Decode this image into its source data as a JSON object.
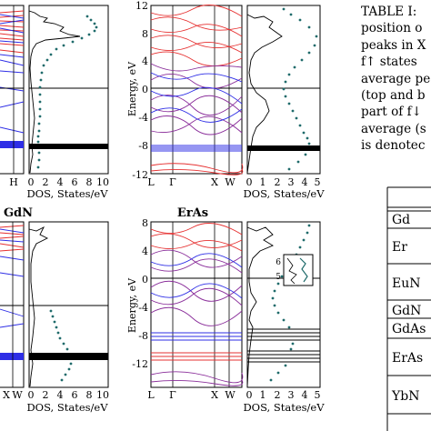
{
  "panels": {
    "left_top": {
      "x_ticks": [
        "H"
      ],
      "dos_ticks": [
        "0",
        "2",
        "4",
        "6",
        "8",
        "10"
      ],
      "dos_xlabel": "DOS, States/eV"
    },
    "mid_top": {
      "ylabel": "Energy, eV",
      "y_ticks": [
        "12",
        "8",
        "4",
        "0",
        "-4",
        "-8",
        "-12"
      ],
      "x_ticks": [
        "L",
        "Γ",
        "X",
        "W"
      ],
      "dos_ticks": [
        "0",
        "1",
        "2",
        "3",
        "4",
        "5"
      ],
      "dos_xlabel": "DOS, States/eV"
    },
    "left_bottom": {
      "title": "GdN",
      "x_ticks": [
        "X",
        "W"
      ],
      "dos_ticks": [
        "0",
        "2",
        "4",
        "6",
        "8",
        "10"
      ],
      "dos_xlabel": "DOS, States/eV"
    },
    "mid_bottom": {
      "title": "ErAs",
      "ylabel": "Energy, eV",
      "y_ticks": [
        "8",
        "4",
        "0",
        "-4",
        "-8",
        "-12"
      ],
      "x_ticks": [
        "L",
        "Γ",
        "X",
        "W"
      ],
      "dos_ticks": [
        "0",
        "1",
        "2",
        "3",
        "4",
        "5"
      ],
      "dos_xlabel": "DOS, States/eV",
      "inset_ticks": [
        "6",
        "5"
      ]
    }
  },
  "caption": {
    "lines": [
      "TABLE I:",
      "position o",
      "peaks in X",
      "f↑ states",
      "average pe",
      "(top and b",
      "part of f↓",
      "average (s",
      "is denotec"
    ]
  },
  "table": {
    "rows": [
      "Gd",
      "Er",
      "EuN",
      "GdN",
      "GdAs",
      "ErAs",
      "YbN"
    ]
  },
  "colors": {
    "blue_bands": "#2e2ee6",
    "red_bands": "#e63030",
    "purple_bands": "#8a2e9a",
    "dos_dots": "#1f6b6b",
    "line": "#000000"
  }
}
